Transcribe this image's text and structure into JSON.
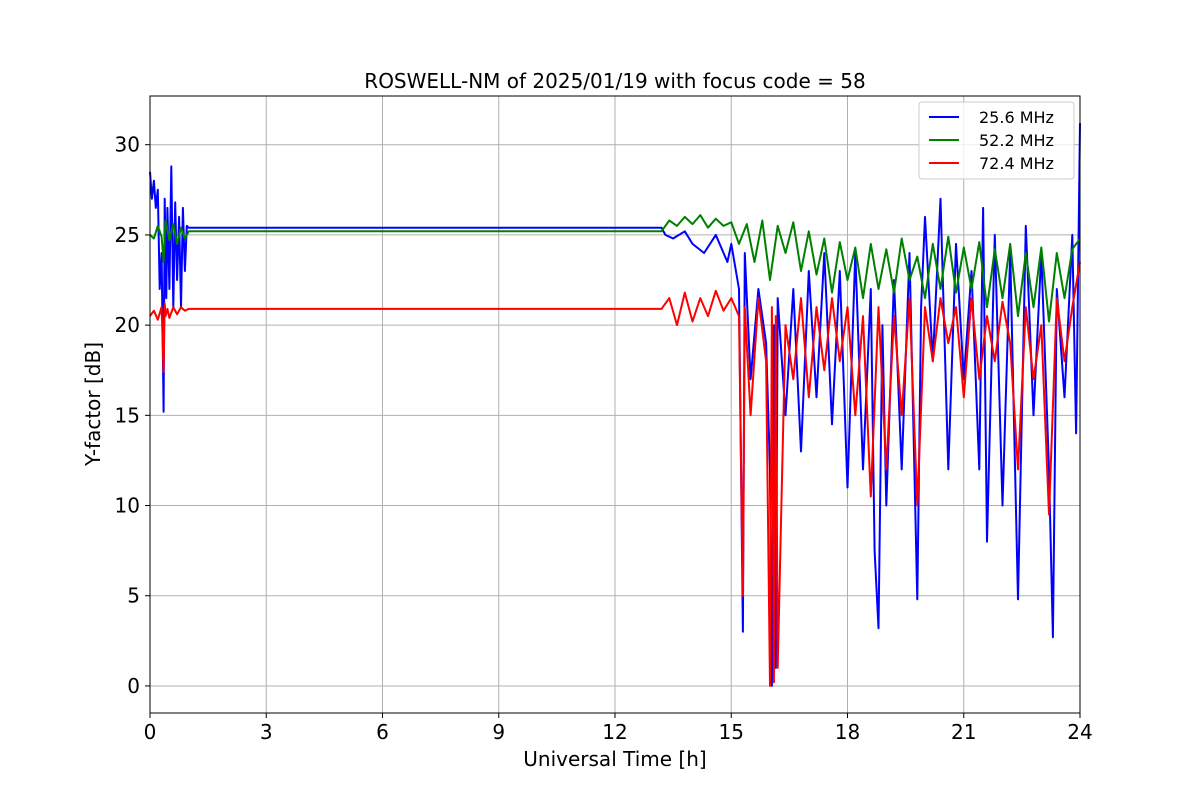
{
  "chart_data": {
    "type": "line",
    "title": "ROSWELL-NM of 2025/01/19 with focus code = 58",
    "xlabel": "Universal Time [h]",
    "ylabel": "Y-factor [dB]",
    "xlim": [
      0,
      24
    ],
    "ylim": [
      -1.5,
      32.7
    ],
    "xticks": [
      0,
      3,
      6,
      9,
      12,
      15,
      18,
      21,
      24
    ],
    "yticks": [
      0,
      5,
      10,
      15,
      20,
      25,
      30
    ],
    "grid": true,
    "legend_position": "top-right",
    "series": [
      {
        "name": "25.6 MHz",
        "color": "#0000ff",
        "x": [
          0.0,
          0.05,
          0.1,
          0.15,
          0.2,
          0.25,
          0.3,
          0.35,
          0.38,
          0.42,
          0.45,
          0.5,
          0.55,
          0.6,
          0.65,
          0.7,
          0.75,
          0.8,
          0.85,
          0.9,
          0.95,
          1.0,
          13.2,
          13.3,
          13.5,
          13.8,
          14.0,
          14.3,
          14.6,
          14.9,
          15.0,
          15.2,
          15.3,
          15.35,
          15.5,
          15.7,
          15.9,
          16.0,
          16.05,
          16.1,
          16.15,
          16.2,
          16.4,
          16.6,
          16.8,
          17.0,
          17.2,
          17.4,
          17.6,
          17.8,
          18.0,
          18.2,
          18.4,
          18.6,
          18.7,
          18.8,
          18.9,
          19.0,
          19.2,
          19.4,
          19.6,
          19.8,
          19.9,
          20.0,
          20.2,
          20.4,
          20.6,
          20.8,
          21.0,
          21.2,
          21.4,
          21.5,
          21.6,
          21.8,
          22.0,
          22.2,
          22.4,
          22.6,
          22.8,
          23.0,
          23.2,
          23.3,
          23.4,
          23.6,
          23.8,
          23.9,
          24.0
        ],
        "y": [
          28.5,
          27.0,
          28.0,
          26.5,
          27.5,
          22.0,
          24.0,
          15.2,
          27.0,
          21.5,
          26.5,
          22.0,
          28.8,
          21.0,
          26.8,
          22.5,
          26.0,
          21.0,
          26.5,
          23.0,
          25.5,
          25.4,
          25.4,
          25.0,
          24.8,
          25.2,
          24.5,
          24.0,
          25.0,
          23.5,
          24.5,
          22.0,
          3.0,
          24.0,
          17.0,
          22.0,
          19.0,
          12.0,
          0.0,
          20.0,
          1.0,
          21.5,
          15.0,
          22.0,
          13.0,
          23.0,
          16.0,
          24.0,
          14.5,
          23.0,
          11.0,
          24.0,
          12.0,
          22.0,
          7.5,
          3.2,
          20.0,
          10.0,
          22.5,
          12.0,
          24.0,
          4.8,
          21.0,
          26.0,
          18.0,
          27.0,
          12.0,
          24.5,
          17.0,
          23.0,
          12.0,
          26.5,
          8.0,
          25.0,
          10.0,
          24.0,
          4.8,
          25.5,
          15.0,
          24.0,
          12.0,
          2.7,
          22.0,
          16.0,
          25.0,
          14.0,
          31.2
        ]
      },
      {
        "name": "52.2 MHz",
        "color": "#008000",
        "x": [
          0.0,
          0.1,
          0.2,
          0.3,
          0.35,
          0.4,
          0.5,
          0.6,
          0.7,
          0.8,
          0.9,
          1.0,
          13.2,
          13.4,
          13.6,
          13.8,
          14.0,
          14.2,
          14.4,
          14.6,
          14.8,
          15.0,
          15.2,
          15.4,
          15.6,
          15.8,
          16.0,
          16.2,
          16.4,
          16.6,
          16.8,
          17.0,
          17.2,
          17.4,
          17.6,
          17.8,
          18.0,
          18.2,
          18.4,
          18.6,
          18.8,
          19.0,
          19.2,
          19.4,
          19.6,
          19.8,
          20.0,
          20.2,
          20.4,
          20.6,
          20.8,
          21.0,
          21.2,
          21.4,
          21.6,
          21.8,
          22.0,
          22.2,
          22.4,
          22.6,
          22.8,
          23.0,
          23.2,
          23.4,
          23.6,
          23.8,
          24.0
        ],
        "y": [
          25.0,
          24.8,
          25.5,
          24.9,
          23.5,
          25.8,
          24.7,
          25.6,
          24.5,
          25.4,
          24.8,
          25.2,
          25.2,
          25.8,
          25.5,
          26.0,
          25.6,
          26.1,
          25.4,
          25.9,
          25.5,
          25.7,
          24.5,
          25.6,
          23.5,
          25.8,
          22.5,
          25.5,
          24.0,
          25.7,
          23.0,
          25.2,
          22.8,
          24.8,
          21.8,
          24.6,
          22.5,
          24.3,
          21.5,
          24.5,
          22.0,
          24.2,
          21.8,
          24.8,
          22.5,
          23.8,
          21.5,
          24.5,
          22.0,
          24.9,
          21.8,
          24.3,
          22.0,
          24.6,
          21.0,
          24.2,
          21.5,
          24.5,
          20.5,
          24.0,
          21.0,
          24.3,
          20.2,
          24.0,
          21.5,
          24.2,
          24.8
        ]
      },
      {
        "name": "72.4 MHz",
        "color": "#ff0000",
        "x": [
          0.0,
          0.1,
          0.2,
          0.3,
          0.35,
          0.38,
          0.4,
          0.45,
          0.5,
          0.6,
          0.7,
          0.8,
          0.9,
          1.0,
          13.2,
          13.4,
          13.6,
          13.8,
          14.0,
          14.2,
          14.4,
          14.6,
          14.8,
          15.0,
          15.2,
          15.3,
          15.35,
          15.5,
          15.7,
          15.9,
          16.0,
          16.05,
          16.1,
          16.15,
          16.2,
          16.4,
          16.6,
          16.8,
          17.0,
          17.2,
          17.4,
          17.6,
          17.8,
          18.0,
          18.2,
          18.4,
          18.6,
          18.8,
          19.0,
          19.2,
          19.4,
          19.6,
          19.8,
          20.0,
          20.2,
          20.4,
          20.6,
          20.8,
          21.0,
          21.2,
          21.4,
          21.6,
          21.8,
          22.0,
          22.2,
          22.4,
          22.6,
          22.8,
          23.0,
          23.2,
          23.4,
          23.6,
          23.8,
          24.0
        ],
        "y": [
          20.5,
          20.8,
          20.3,
          21.0,
          17.4,
          21.2,
          20.5,
          20.9,
          20.4,
          21.0,
          20.6,
          21.0,
          20.8,
          20.9,
          20.9,
          21.5,
          20.0,
          21.8,
          20.2,
          21.5,
          20.5,
          21.9,
          20.8,
          21.5,
          20.5,
          5.0,
          21.0,
          15.0,
          21.5,
          18.0,
          0.0,
          21.0,
          0.2,
          20.5,
          1.0,
          20.0,
          17.0,
          21.5,
          16.0,
          21.0,
          17.5,
          21.5,
          18.0,
          21.0,
          15.0,
          20.5,
          10.5,
          21.0,
          12.0,
          20.5,
          15.0,
          21.5,
          10.0,
          21.0,
          18.0,
          21.5,
          19.0,
          21.0,
          16.0,
          21.5,
          17.0,
          20.5,
          18.0,
          21.3,
          19.0,
          12.0,
          21.0,
          17.0,
          20.0,
          9.5,
          21.5,
          18.0,
          21.0,
          23.5
        ]
      }
    ]
  }
}
